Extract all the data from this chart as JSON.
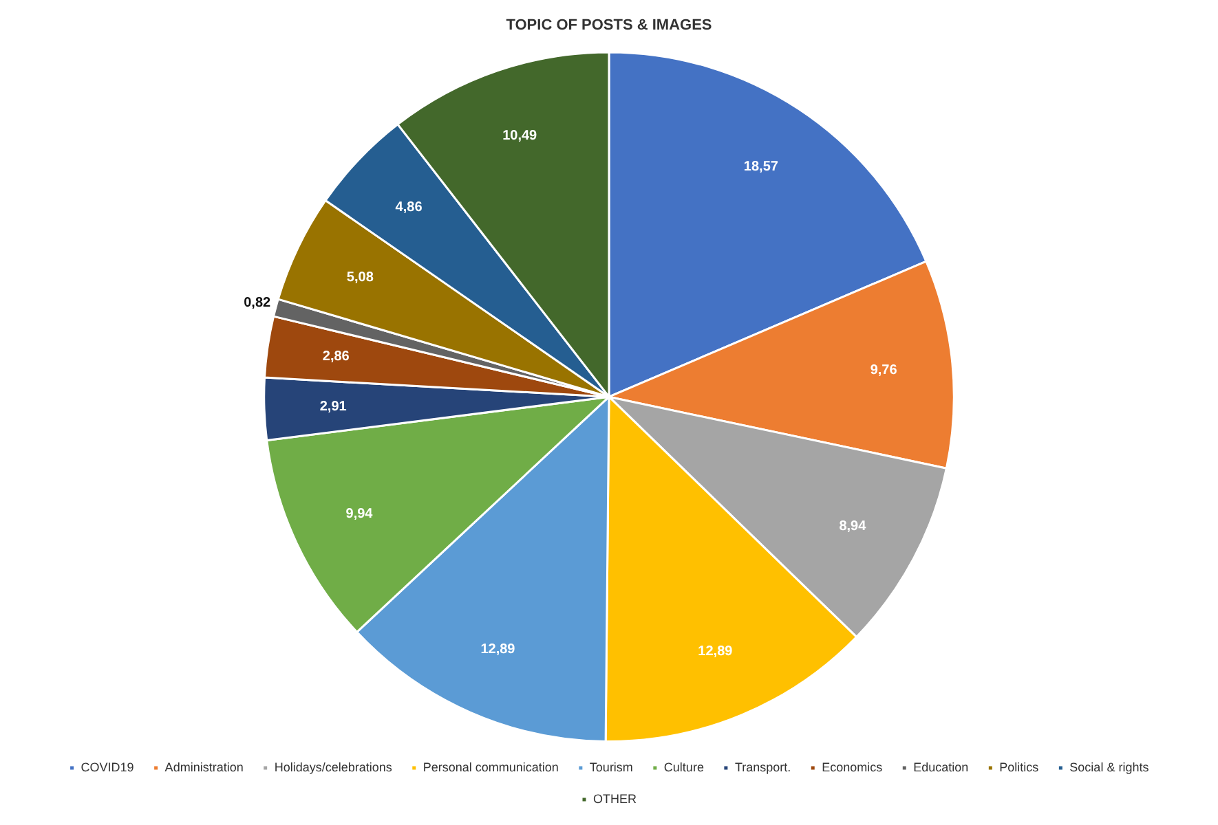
{
  "chart_data": {
    "type": "pie",
    "title": "TOPIC OF POSTS & IMAGES",
    "categories": [
      "COVID19",
      "Administration",
      "Holidays/celebrations",
      "Personal communication",
      "Tourism",
      "Culture",
      "Transport.",
      "Economics",
      "Education",
      "Politics",
      "Social & rights",
      "OTHER"
    ],
    "values": [
      18.57,
      9.76,
      8.94,
      12.89,
      12.89,
      9.94,
      2.91,
      2.86,
      0.82,
      5.08,
      4.86,
      10.49
    ],
    "colors": [
      "#4472c4",
      "#ed7d31",
      "#a5a5a5",
      "#ffc000",
      "#5b9bd5",
      "#70ad47",
      "#264478",
      "#9e480e",
      "#636363",
      "#997300",
      "#255e91",
      "#43682b"
    ],
    "value_labels": [
      "18,57",
      "9,76",
      "8,94",
      "12,89",
      "12,89",
      "9,94",
      "2,91",
      "2,86",
      "0,82",
      "5,08",
      "4,86",
      "10,49"
    ],
    "legend": "bottom"
  }
}
